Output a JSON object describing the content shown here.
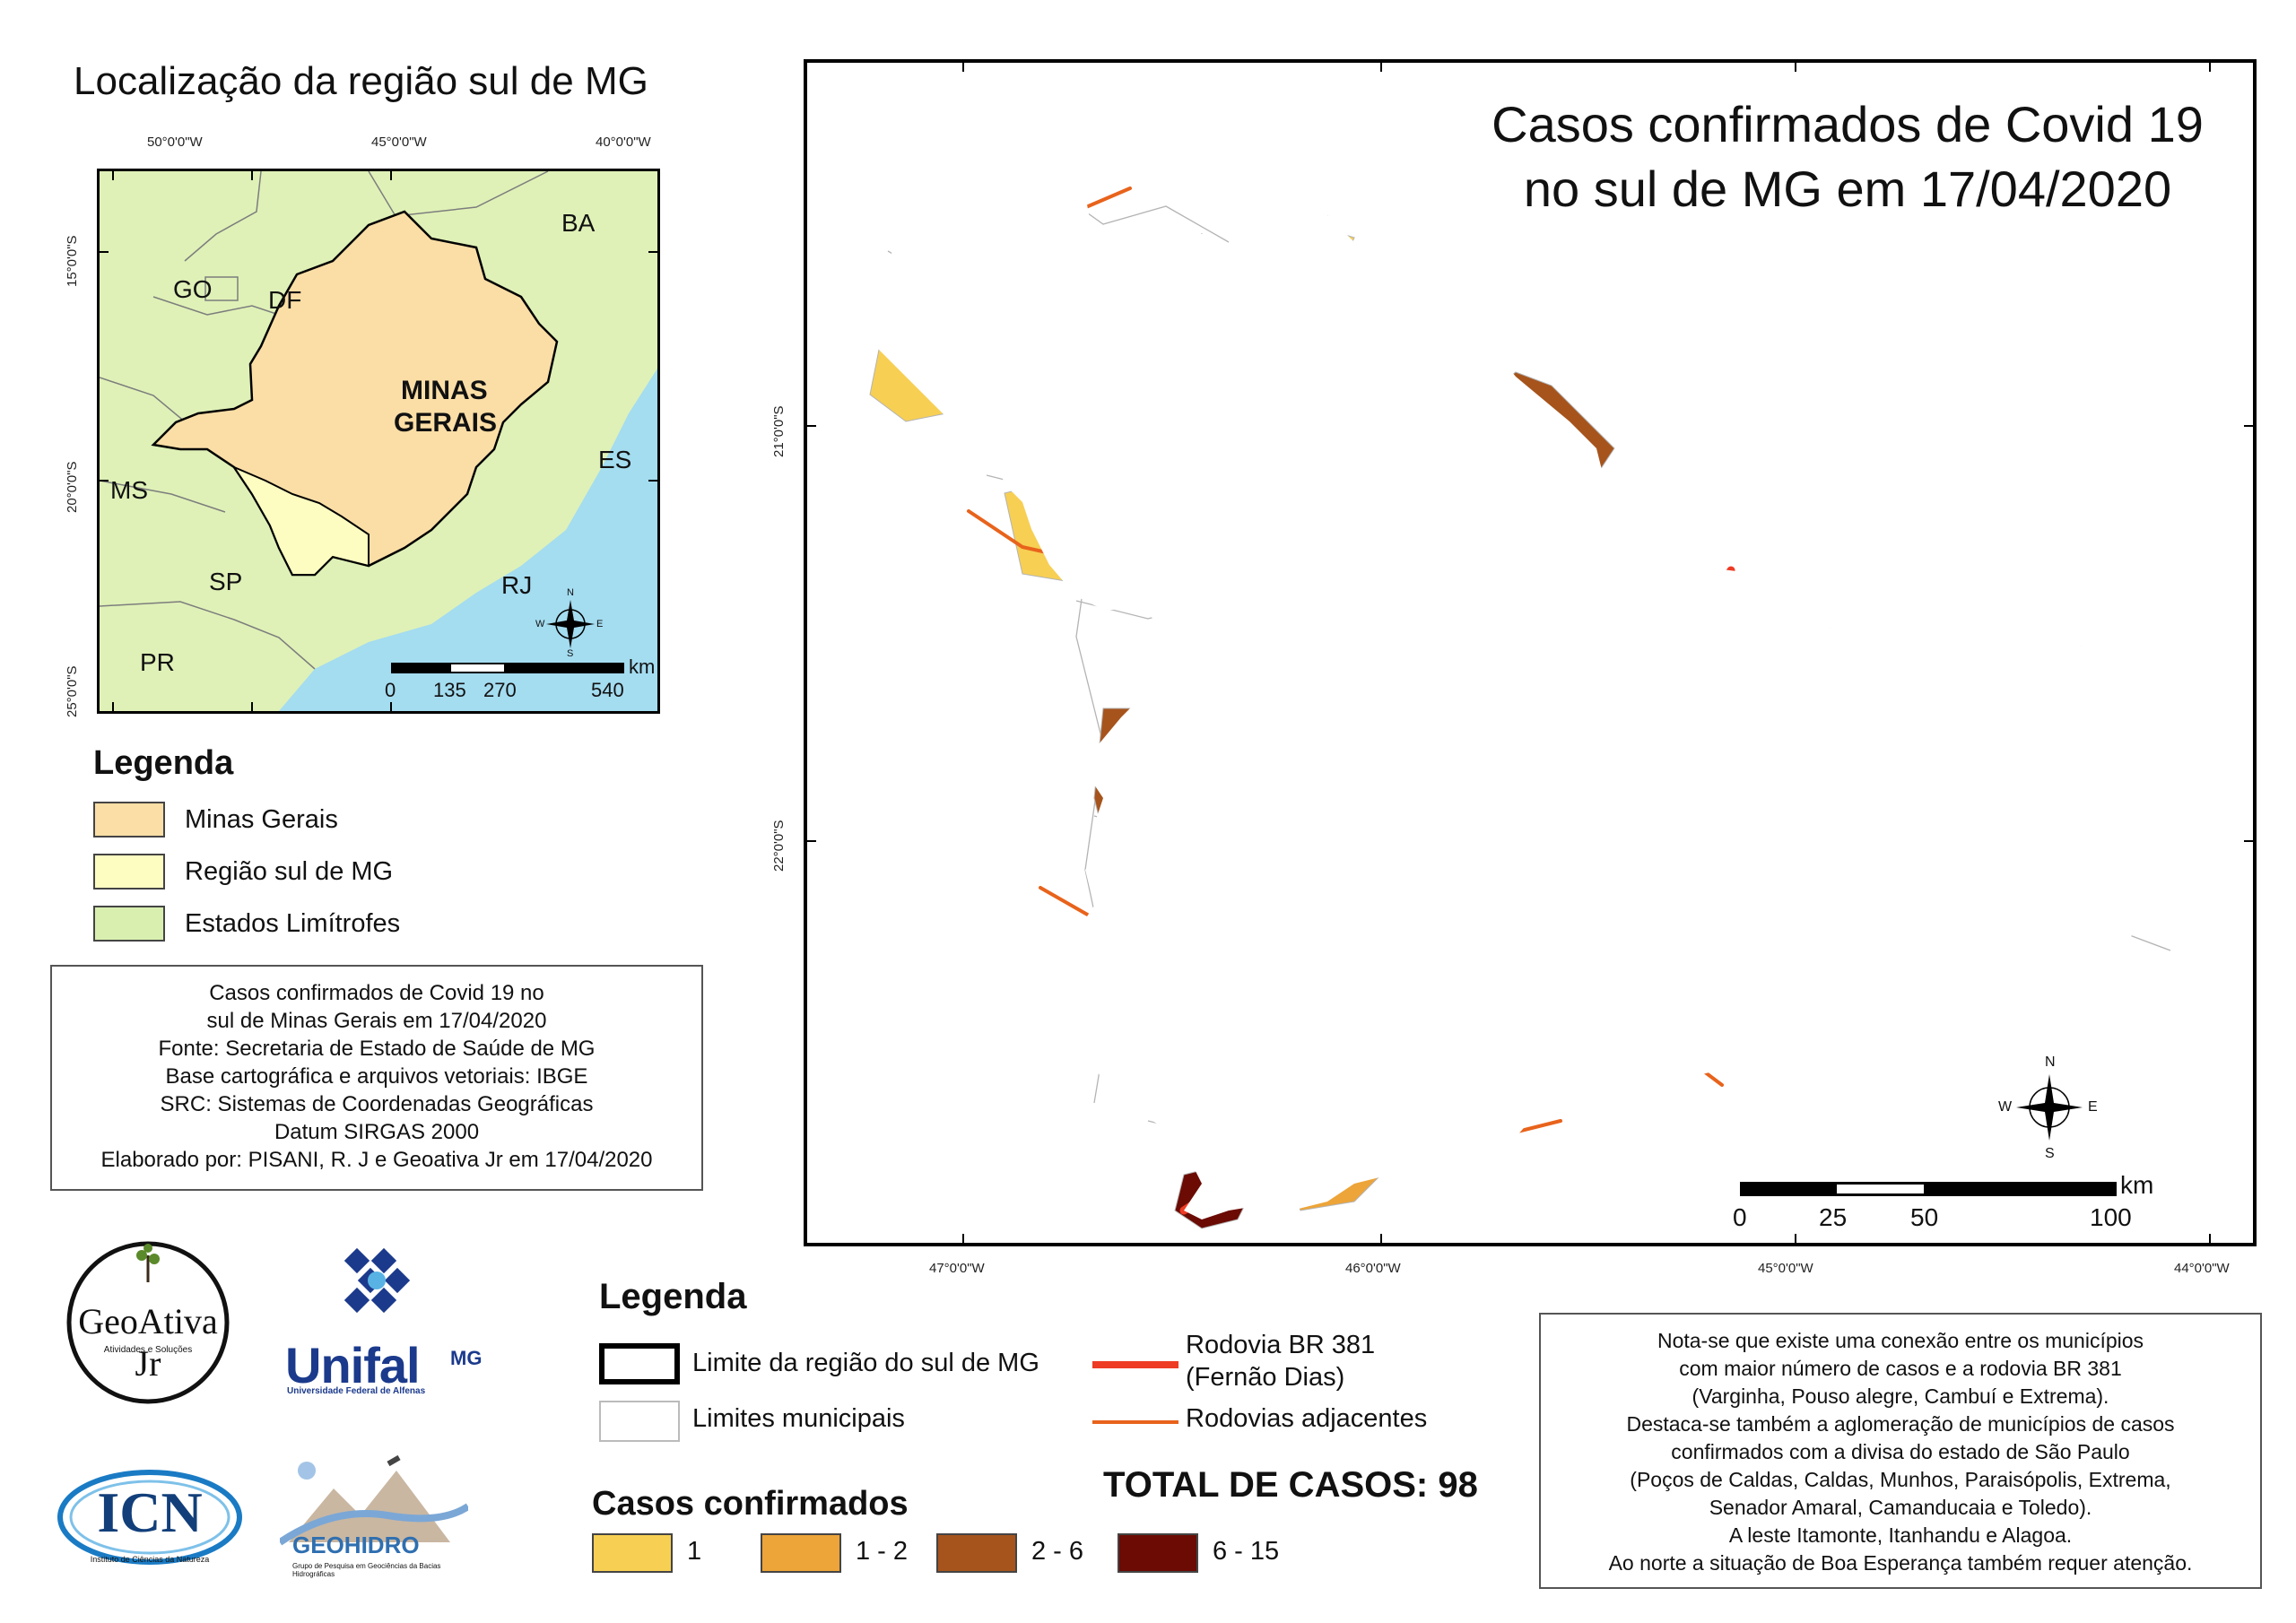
{
  "inset": {
    "title": "Localização da região sul de MG",
    "top_ticks": [
      "50°0'0\"W",
      "45°0'0\"W",
      "40°0'0\"W"
    ],
    "left_ticks": [
      "15°0'0\"S",
      "20°0'0\"S",
      "25°0'0\"S"
    ],
    "state_labels": {
      "ba": "BA",
      "go": "GO",
      "df": "DF",
      "mg_line1": "MINAS",
      "mg_line2": "GERAIS",
      "es": "ES",
      "ms": "MS",
      "sp": "SP",
      "rj": "RJ",
      "pr": "PR"
    },
    "scale": {
      "unit": "km",
      "labels": [
        "0",
        "135",
        "270",
        "540"
      ]
    },
    "compass": {
      "n": "N",
      "s": "S",
      "e": "E",
      "w": "W"
    }
  },
  "inset_legend": {
    "title": "Legenda",
    "items": [
      {
        "label": "Minas Gerais",
        "color": "#fbdea6"
      },
      {
        "label": "Região sul de MG",
        "color": "#fdfdc2"
      },
      {
        "label": "Estados Limítrofes",
        "color": "#d8efb0"
      }
    ]
  },
  "info_box": {
    "lines": [
      "Casos confirmados de Covid 19 no",
      "sul de Minas Gerais em 17/04/2020",
      "Fonte: Secretaria de Estado de Saúde de MG",
      "Base cartográfica e arquivos vetoriais: IBGE",
      "SRC: Sistemas de Coordenadas Geográficas",
      "Datum SIRGAS 2000",
      "Elaborado por: PISANI, R. J e Geoativa Jr em 17/04/2020"
    ]
  },
  "main_map": {
    "title_line1": "Casos confirmados de Covid 19",
    "title_line2": "no sul de MG em 17/04/2020",
    "bottom_ticks": [
      "47°0'0\"W",
      "46°0'0\"W",
      "45°0'0\"W",
      "44°0'0\"W"
    ],
    "left_ticks": [
      "21°0'0\"S",
      "22°0'0\"S"
    ],
    "scale": {
      "unit": "km",
      "labels": [
        "0",
        "25",
        "50",
        "100"
      ]
    },
    "compass": {
      "n": "N",
      "s": "S",
      "e": "E",
      "w": "W"
    },
    "colors": {
      "class1": "#f7cf53",
      "class2": "#eda438",
      "class3": "#a6541c",
      "class4": "#6b0b04",
      "br381": "#ee3b24",
      "roads": "#e8631c"
    }
  },
  "main_legend": {
    "title": "Legenda",
    "region_limit": "Limite da região do sul de MG",
    "municipal_limits": "Limites municipais",
    "br381_line1": "Rodovia BR 381",
    "br381_line2": "(Fernão Dias)",
    "adjacent_roads": "Rodovias adjacentes",
    "cases_title": "Casos confirmados",
    "cases_classes": [
      {
        "label": "1",
        "color": "#f7cf53"
      },
      {
        "label": "1 - 2",
        "color": "#eda438"
      },
      {
        "label": "2 - 6",
        "color": "#a6541c"
      },
      {
        "label": "6 - 15",
        "color": "#6b0b04"
      }
    ],
    "total": "TOTAL DE CASOS: 98"
  },
  "note_box": {
    "lines": [
      "Nota-se que existe uma conexão entre os municípios",
      "com maior número de casos e a rodovia BR 381",
      "(Varginha, Pouso alegre, Cambuí e Extrema).",
      "Destaca-se também a aglomeração de municípios de casos",
      "confirmados com a divisa do estado de São Paulo",
      "(Poços de Caldas, Caldas, Munhos, Paraisópolis, Extrema,",
      "Senador Amaral, Camanducaia e Toledo).",
      "A leste Itamonte, Itanhandu e Alagoa.",
      "Ao norte a situação de Boa Esperança também requer atenção."
    ]
  },
  "logos": {
    "geoativa_name": "GeoAtiva Jr",
    "geoativa_sub": "Atividades e Soluções",
    "unifal_name": "Unifal",
    "unifal_mg": "MG",
    "unifal_sub": "Universidade Federal de Alfenas",
    "icn_name": "ICN",
    "icn_sub": "Instituto de Ciências da Natureza",
    "geohidro_name": "GEOHIDRO",
    "geohidro_sub": "Grupo de Pesquisa em Geociências da Bacias Hidrográficas"
  }
}
